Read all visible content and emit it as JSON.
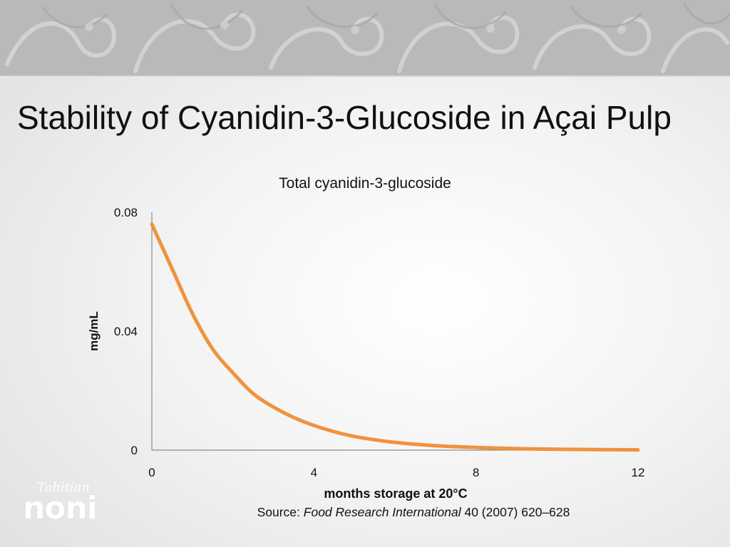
{
  "slide": {
    "title": "Stability of Cyanidin-3-Glucoside in Açai Pulp"
  },
  "chart_data": {
    "type": "line",
    "title": "Total cyanidin-3-glucoside",
    "xlabel": "months storage at 20°C",
    "ylabel": "mg/mL",
    "xlim": [
      0,
      12
    ],
    "ylim": [
      0,
      0.08
    ],
    "x_ticks": [
      "0",
      "4",
      "8",
      "12"
    ],
    "y_ticks": [
      "0",
      "0.04",
      "0.08"
    ],
    "grid": false,
    "legend": "none",
    "series": [
      {
        "color": "#F0923E",
        "x": [
          0,
          0.5,
          1,
          1.5,
          2,
          2.5,
          3,
          3.5,
          4,
          4.5,
          5,
          5.5,
          6,
          7,
          8,
          9,
          10,
          11,
          12
        ],
        "y": [
          0.076,
          0.061,
          0.046,
          0.034,
          0.026,
          0.019,
          0.0145,
          0.011,
          0.0083,
          0.0062,
          0.0046,
          0.0035,
          0.0026,
          0.0015,
          0.0009,
          0.0005,
          0.0003,
          0.0002,
          0.0001
        ]
      }
    ]
  },
  "source": {
    "prefix": "Source: ",
    "journal": "Food Research International",
    "suffix": " 40 (2007) 620–628"
  },
  "logo": {
    "script": "Tahitian",
    "word": "noni"
  },
  "colors": {
    "curve": "#F0923E",
    "banner": "#b9b9b9"
  }
}
